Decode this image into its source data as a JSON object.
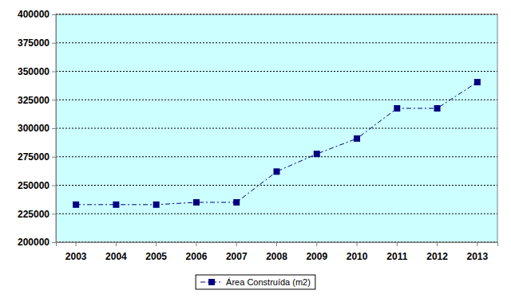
{
  "chart_data": {
    "type": "line",
    "categories": [
      "2003",
      "2004",
      "2005",
      "2006",
      "2007",
      "2008",
      "2009",
      "2010",
      "2011",
      "2012",
      "2013"
    ],
    "series": [
      {
        "name": "Área Construída (m2)",
        "color": "#000080",
        "marker": "square",
        "line_style": "dashdot",
        "values": [
          233000,
          233000,
          233000,
          235000,
          235000,
          262000,
          277500,
          291000,
          317500,
          317500,
          340500
        ]
      }
    ],
    "ylim": [
      200000,
      400000
    ],
    "yticks": [
      200000,
      225000,
      250000,
      275000,
      300000,
      325000,
      350000,
      375000,
      400000
    ],
    "grid": true,
    "legend": "bottom"
  }
}
